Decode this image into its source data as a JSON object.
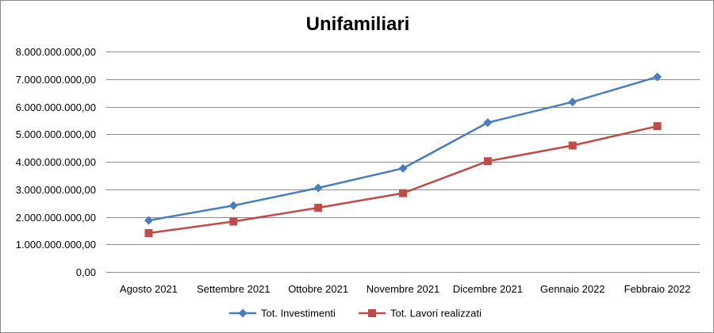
{
  "chart_data": {
    "type": "line",
    "title": "Unifamiliari",
    "xlabel": "",
    "ylabel": "",
    "categories": [
      "Agosto 2021",
      "Settembre 2021",
      "Ottobre 2021",
      "Novembre 2021",
      "Dicembre 2021",
      "Gennaio 2022",
      "Febbraio 2022"
    ],
    "ylim": [
      0,
      8000000000
    ],
    "yticks": [
      0,
      1000000000,
      2000000000,
      3000000000,
      4000000000,
      5000000000,
      6000000000,
      7000000000,
      8000000000
    ],
    "ytick_labels": [
      "0,00",
      "1.000.000.000,00",
      "2.000.000.000,00",
      "3.000.000.000,00",
      "4.000.000.000,00",
      "5.000.000.000,00",
      "6.000.000.000,00",
      "7.000.000.000,00",
      "8.000.000.000,00"
    ],
    "grid": true,
    "legend_position": "bottom",
    "series": [
      {
        "name": "Tot. Investimenti",
        "color": "#4a7ebb",
        "marker": "diamond",
        "values": [
          1870000000,
          2410000000,
          3050000000,
          3760000000,
          5420000000,
          6170000000,
          7080000000
        ]
      },
      {
        "name": "Tot. Lavori realizzati",
        "color": "#be4b48",
        "marker": "square",
        "values": [
          1410000000,
          1830000000,
          2330000000,
          2860000000,
          4020000000,
          4590000000,
          5290000000
        ]
      }
    ]
  }
}
